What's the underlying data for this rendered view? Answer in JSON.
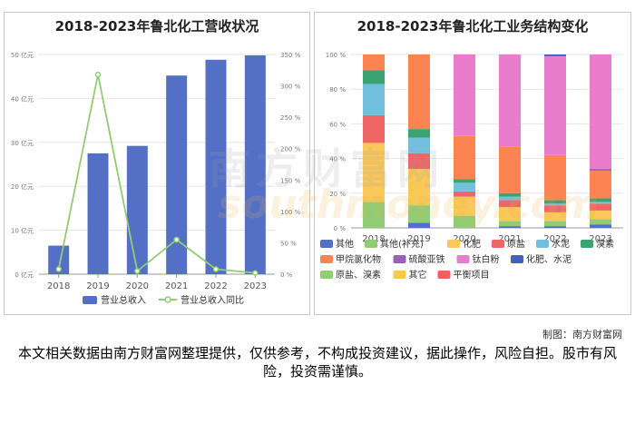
{
  "chart_data": [
    {
      "type": "bar",
      "title": "2018-2023年鲁北化工营收状况",
      "categories": [
        "2018",
        "2019",
        "2020",
        "2021",
        "2022",
        "2023"
      ],
      "left_axis_ticks": [
        "0 亿元",
        "10 亿元",
        "20 亿元",
        "30 亿元",
        "40 亿元",
        "50 亿元"
      ],
      "right_axis_ticks": [
        "0 %",
        "50 %",
        "100 %",
        "150 %",
        "200 %",
        "250 %",
        "300 %",
        "350 %"
      ],
      "ylim": [
        0,
        50
      ],
      "y2lim": [
        0,
        350
      ],
      "grid": true,
      "legend_position": "bottom",
      "series": [
        {
          "name": "营业总收入",
          "type": "bar",
          "axis": "left",
          "color": "#5470c6",
          "values": [
            6.5,
            27.5,
            29.2,
            45.2,
            48.8,
            49.8
          ]
        },
        {
          "name": "营业总收入同比",
          "type": "line",
          "axis": "right",
          "color": "#91cc75",
          "values": [
            8,
            318,
            5,
            55,
            8,
            2
          ]
        }
      ]
    },
    {
      "type": "bar",
      "stacked": true,
      "title": "2018-2023年鲁北化工业务结构变化",
      "categories": [
        "2018",
        "2019",
        "2020",
        "2021",
        "2022",
        "2023"
      ],
      "y_axis_ticks": [
        "0 %",
        "20 %",
        "40 %",
        "60 %",
        "80 %",
        "100 %"
      ],
      "ylim": [
        0,
        100
      ],
      "grid": true,
      "legend_position": "bottom",
      "series": [
        {
          "name": "其他",
          "color": "#5470c6",
          "values": [
            0,
            3,
            0,
            1,
            1,
            2
          ]
        },
        {
          "name": "其他(补充)",
          "color": "#91cc75",
          "values": [
            15,
            10,
            7,
            3,
            3,
            3
          ]
        },
        {
          "name": "化肥",
          "color": "#fac858",
          "values": [
            34,
            21,
            11,
            8,
            5,
            5
          ]
        },
        {
          "name": "原盐",
          "color": "#ee6666",
          "values": [
            16,
            9,
            3,
            4,
            4,
            4
          ]
        },
        {
          "name": "水泥",
          "color": "#73c0de",
          "values": [
            18,
            9,
            5,
            2,
            1,
            1
          ]
        },
        {
          "name": "溴素",
          "color": "#3ba272",
          "values": [
            8,
            5,
            2,
            2,
            2,
            2
          ]
        },
        {
          "name": "甲烷氯化物",
          "color": "#fc8452",
          "values": [
            9,
            43,
            25,
            27,
            26,
            16
          ]
        },
        {
          "name": "硫酸亚铁",
          "color": "#9a60b4",
          "values": [
            0,
            0,
            0,
            0,
            0,
            1
          ]
        },
        {
          "name": "钛白粉",
          "color": "#ea7ccc",
          "values": [
            0,
            0,
            47,
            53,
            57,
            66
          ]
        },
        {
          "name": "化肥、水泥",
          "color": "#4460b8",
          "values": [
            0,
            0,
            0,
            0,
            1,
            0
          ]
        },
        {
          "name": "原盐、溴素",
          "color": "#8fcf70",
          "values": [
            0,
            0,
            0,
            0,
            0,
            0
          ]
        },
        {
          "name": "其它",
          "color": "#f9c74f",
          "values": [
            0,
            0,
            0,
            0,
            0,
            0
          ]
        },
        {
          "name": "平衡项目",
          "color": "#ef6060",
          "values": [
            0,
            0,
            0,
            0,
            0,
            0
          ]
        }
      ]
    }
  ],
  "watermark": {
    "text_cn": "南方财富网",
    "text_en": "southmoney.com"
  },
  "credit": "制图：南方财富网",
  "disclaimer": "本文相关数据由南方财富网整理提供，仅供参考，不构成投资建议，据此操作，风险自担。股市有风险，投资需谨慎。"
}
